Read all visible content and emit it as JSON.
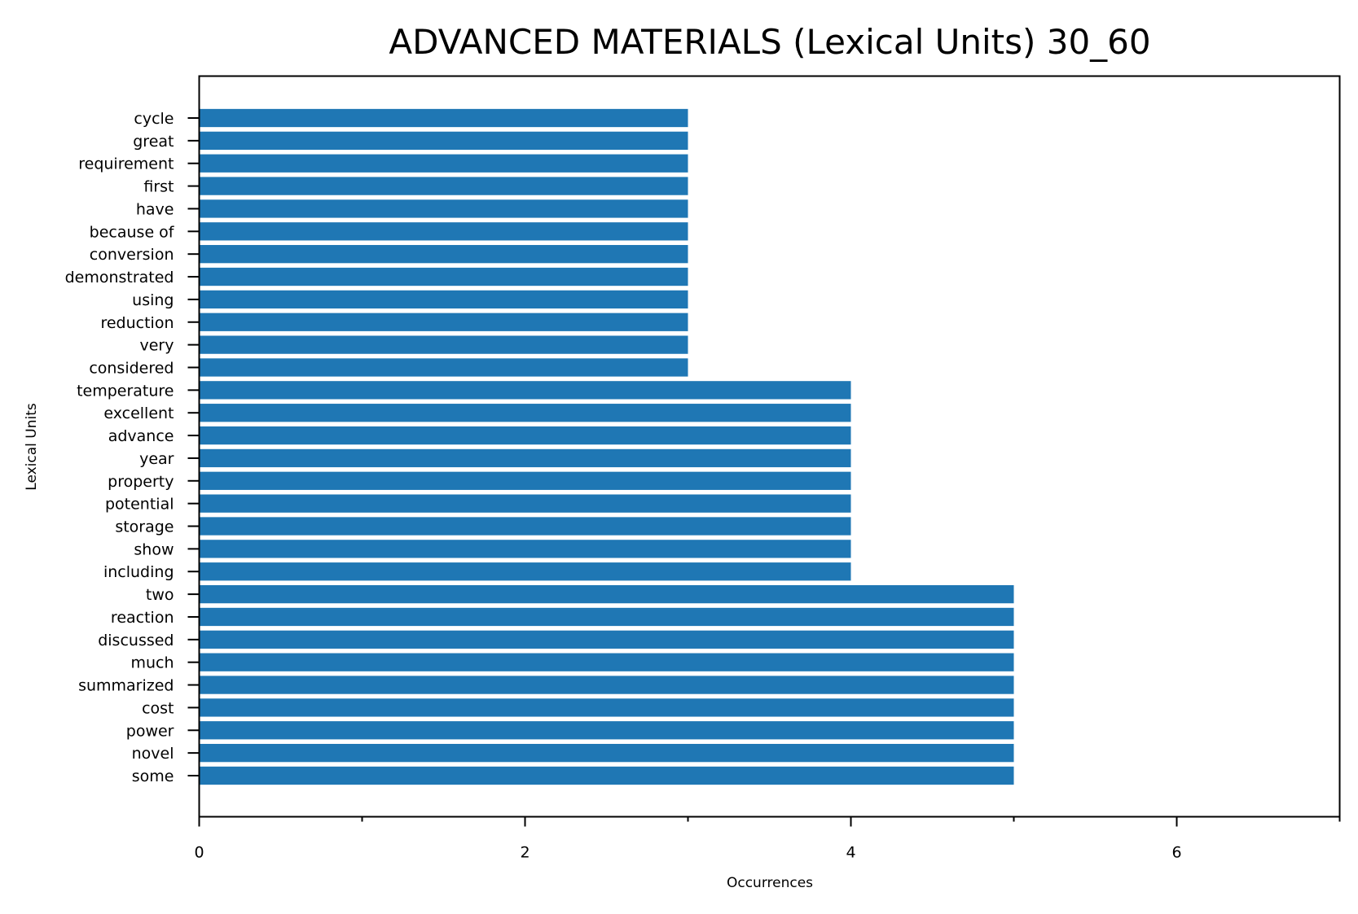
{
  "chart_data": {
    "type": "bar",
    "orientation": "horizontal",
    "title": "ADVANCED MATERIALS (Lexical Units) 30_60",
    "xlabel": "Occurrences",
    "ylabel": "Lexical Units",
    "xlim": [
      0,
      7
    ],
    "xticks": [
      0,
      2,
      4,
      6
    ],
    "xtick_labels": [
      "0",
      "2",
      "4",
      "6"
    ],
    "xminor_ticks": [
      1,
      3,
      5,
      7
    ],
    "grid": false,
    "bar_color": "#1f77b4",
    "categories": [
      "cycle",
      "great",
      "requirement",
      "first",
      "have",
      "because of",
      "conversion",
      "demonstrated",
      "using",
      "reduction",
      "very",
      "considered",
      "temperature",
      "excellent",
      "advance",
      "year",
      "property",
      "potential",
      "storage",
      "show",
      "including",
      "two",
      "reaction",
      "discussed",
      "much",
      "summarized",
      "cost",
      "power",
      "novel",
      "some"
    ],
    "values": [
      3,
      3,
      3,
      3,
      3,
      3,
      3,
      3,
      3,
      3,
      3,
      3,
      4,
      4,
      4,
      4,
      4,
      4,
      4,
      4,
      4,
      5,
      5,
      5,
      5,
      5,
      5,
      5,
      5,
      5
    ]
  }
}
